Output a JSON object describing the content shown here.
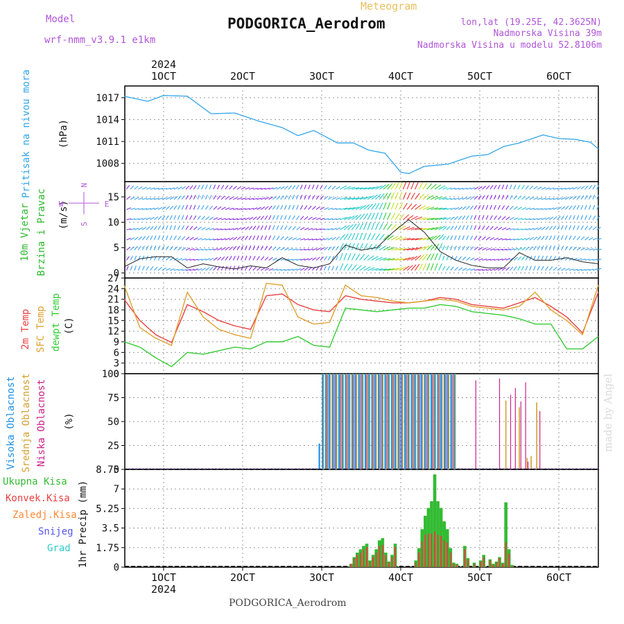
{
  "header": {
    "model_label": "Model",
    "model_value": "wrf-nmm_v3.9.1 e1km",
    "meteogram_label": "Meteogram",
    "station": "PODGORICA_Aerodrom",
    "lonlat": "lon,lat (19.25E, 42.3625N)",
    "elevation": "Nadmorska Visina 39m",
    "elevation_model": "Nadmorska Visina u modelu 52.8106m"
  },
  "footer": {
    "station": "PODGORICA_Aerodrom",
    "made_by": "made by Angel"
  },
  "colors": {
    "pressure": "#33a6e8",
    "wind_title": "#2db82d",
    "temp2m": "#e84040",
    "sfc": "#e0a030",
    "dewpt": "#33cc33",
    "high_cloud": "#1e90e8",
    "mid_cloud": "#d4a030",
    "low_cloud": "#cc2288",
    "precip_total": "#33bb33",
    "precip_conv": "#e84040",
    "precip_frozen": "#ff8833",
    "snow": "#5555ee",
    "hail": "#33cccc",
    "label_purple": "#b055d8"
  },
  "time_axis": {
    "ticks": [
      "1OCT",
      "2OCT",
      "3OCT",
      "4OCT",
      "5OCT",
      "6OCT"
    ],
    "year": "2024"
  },
  "chart_data": [
    {
      "type": "line",
      "name": "pressure",
      "ylabel_lines": [
        "Pritisak na nivou mora",
        "(hPa)"
      ],
      "ylim": [
        1005.5,
        1018.6
      ],
      "yticks": [
        "1017",
        "1014",
        "1011",
        "1008"
      ],
      "ytick_values": [
        1017,
        1014,
        1011,
        1008
      ],
      "grid": true,
      "x_days": [
        0.5,
        0.8,
        1.0,
        1.3,
        1.6,
        1.9,
        2.2,
        2.5,
        2.7,
        2.9,
        3.2,
        3.4,
        3.6,
        3.8,
        4.0,
        4.1,
        4.3,
        4.6,
        4.9,
        5.1,
        5.3,
        5.5,
        5.8,
        6.0,
        6.2,
        6.4,
        6.5
      ],
      "values": [
        1017.2,
        1016.5,
        1017.3,
        1017.2,
        1014.8,
        1014.9,
        1013.8,
        1012.9,
        1011.8,
        1012.5,
        1010.8,
        1010.8,
        1009.8,
        1009.4,
        1006.8,
        1006.6,
        1007.6,
        1007.9,
        1009.0,
        1009.2,
        1010.3,
        1010.8,
        1011.9,
        1011.4,
        1011.3,
        1010.9,
        1010.0
      ]
    },
    {
      "type": "line",
      "name": "wind",
      "ylabel_lines": [
        "10m Vjetar",
        "Brzina i Pravac",
        "(m/s)"
      ],
      "compass": [
        "N",
        "E",
        "S",
        "W"
      ],
      "ylim": [
        -1,
        18
      ],
      "yticks": [
        "15",
        "10",
        "5",
        "0"
      ],
      "ytick_values": [
        15,
        10,
        5,
        0
      ],
      "grid": true,
      "x_days": [
        0.5,
        0.7,
        0.9,
        1.1,
        1.3,
        1.5,
        1.7,
        1.9,
        2.1,
        2.3,
        2.5,
        2.7,
        2.9,
        3.1,
        3.3,
        3.5,
        3.7,
        3.9,
        4.1,
        4.3,
        4.5,
        4.7,
        4.9,
        5.1,
        5.3,
        5.5,
        5.7,
        5.9,
        6.1,
        6.3,
        6.5
      ],
      "values": [
        1.2,
        2.8,
        3.2,
        3.2,
        1.0,
        1.8,
        1.2,
        0.8,
        1.4,
        1.0,
        3.0,
        1.5,
        1.0,
        1.8,
        5.5,
        4.5,
        5.0,
        8.0,
        10.5,
        8.0,
        4.2,
        2.5,
        1.5,
        1.0,
        1.0,
        4.0,
        2.5,
        2.5,
        3.0,
        2.2,
        1.8
      ]
    },
    {
      "type": "line",
      "name": "temperature",
      "ylabel_lines": [
        "2m Temp",
        "SFC Temp",
        "dewpt Temp",
        "(C)"
      ],
      "ylim": [
        0,
        27
      ],
      "yticks": [
        "27",
        "24",
        "21",
        "18",
        "15",
        "12",
        "9",
        "6",
        "3",
        "0"
      ],
      "ytick_values": [
        27,
        24,
        21,
        18,
        15,
        12,
        9,
        6,
        3,
        0
      ],
      "grid": true,
      "x_days": [
        0.5,
        0.7,
        0.9,
        1.1,
        1.3,
        1.5,
        1.7,
        1.9,
        2.1,
        2.3,
        2.5,
        2.7,
        2.9,
        3.1,
        3.3,
        3.5,
        3.7,
        3.9,
        4.1,
        4.3,
        4.5,
        4.7,
        4.9,
        5.1,
        5.3,
        5.5,
        5.7,
        5.9,
        6.1,
        6.3,
        6.5
      ],
      "series": [
        {
          "key": "t2m",
          "values": [
            21.0,
            15.0,
            11.0,
            8.8,
            19.5,
            17.5,
            15.0,
            13.5,
            12.5,
            22.0,
            22.5,
            19.5,
            18.0,
            17.5,
            22.0,
            21.0,
            20.5,
            20.0,
            20.0,
            20.5,
            21.5,
            21.0,
            19.5,
            19.0,
            18.5,
            20.0,
            21.5,
            19.0,
            16.0,
            11.5,
            23.0
          ]
        },
        {
          "key": "sfc",
          "values": [
            25.0,
            13.0,
            10.0,
            8.0,
            23.0,
            16.0,
            12.5,
            11.0,
            10.0,
            25.5,
            25.0,
            16.0,
            14.0,
            14.5,
            25.0,
            22.0,
            21.5,
            20.5,
            20.0,
            20.5,
            21.0,
            20.5,
            19.0,
            18.5,
            18.0,
            19.0,
            23.0,
            18.0,
            15.0,
            11.0,
            25.0
          ]
        },
        {
          "key": "dewpt",
          "values": [
            9.0,
            7.5,
            4.5,
            2.0,
            6.0,
            5.5,
            6.5,
            7.5,
            7.0,
            9.0,
            9.0,
            10.5,
            8.0,
            7.5,
            18.5,
            18.0,
            17.5,
            18.0,
            18.5,
            18.5,
            19.5,
            19.0,
            17.5,
            17.0,
            16.5,
            15.5,
            14.0,
            14.0,
            7.0,
            7.0,
            10.5
          ]
        }
      ]
    },
    {
      "type": "bar",
      "name": "cloud",
      "ylabel_lines": [
        "Visoka Oblacnost",
        "Srednja Oblacnost",
        "Niska Oblacnost",
        "(%)"
      ],
      "ylim": [
        0,
        100
      ],
      "yticks": [
        "100",
        "75",
        "50",
        "25",
        "0"
      ],
      "ytick_values": [
        100,
        75,
        50,
        25,
        0
      ],
      "grid": true,
      "high_span_days": [
        2.97,
        4.68
      ],
      "high_first": 27,
      "mid_extra": [
        {
          "x": 5.33,
          "v": 72
        },
        {
          "x": 5.5,
          "v": 65
        },
        {
          "x": 5.72,
          "v": 70
        },
        {
          "x": 5.6,
          "v": 12
        },
        {
          "x": 5.65,
          "v": 14
        }
      ],
      "low_extra": [
        {
          "x": 4.95,
          "v": 93
        },
        {
          "x": 5.25,
          "v": 95
        },
        {
          "x": 5.39,
          "v": 78
        },
        {
          "x": 5.45,
          "v": 85
        },
        {
          "x": 5.52,
          "v": 71
        },
        {
          "x": 5.58,
          "v": 91
        },
        {
          "x": 5.76,
          "v": 61
        },
        {
          "x": 5.61,
          "v": 8
        }
      ]
    },
    {
      "type": "bar",
      "name": "precip",
      "ylabel_lines": [
        "1hr Precip (mm)"
      ],
      "legend": [
        "Ukupna Kisa",
        "Konvek.Kisa",
        "Zaledj.Kisa",
        "Snijeg",
        "Grad"
      ],
      "ylim": [
        0,
        8.75
      ],
      "yticks": [
        "8.75",
        "7",
        "5.25",
        "3.5",
        "1.75",
        "0"
      ],
      "ytick_values": [
        8.75,
        7,
        5.25,
        3.5,
        1.75,
        0
      ],
      "grid": true,
      "x_days": [
        3.37,
        3.41,
        3.45,
        3.49,
        3.53,
        3.57,
        3.61,
        3.65,
        3.69,
        3.73,
        3.77,
        3.81,
        3.85,
        3.89,
        3.93,
        4.19,
        4.23,
        4.27,
        4.31,
        4.35,
        4.39,
        4.43,
        4.47,
        4.51,
        4.55,
        4.59,
        4.63,
        4.67,
        4.71,
        4.81,
        4.85,
        4.93,
        5.01,
        5.05,
        5.13,
        5.17,
        5.21,
        5.25,
        5.29,
        5.33,
        5.37,
        5.41
      ],
      "values": [
        0.3,
        0.9,
        1.3,
        1.6,
        1.9,
        2.1,
        0.6,
        1.1,
        1.6,
        2.4,
        2.6,
        1.3,
        0.5,
        1.1,
        2.1,
        0.6,
        1.7,
        3.4,
        4.6,
        5.3,
        5.9,
        8.3,
        5.9,
        5.3,
        4.1,
        3.4,
        1.7,
        0.4,
        0.3,
        1.9,
        0.8,
        0.4,
        0.6,
        1.1,
        0.7,
        0.3,
        0.5,
        0.9,
        0.4,
        5.8,
        1.6,
        0.2
      ],
      "conv": [
        0.3,
        0.8,
        1.1,
        1.3,
        1.6,
        1.8,
        0.5,
        0.9,
        1.3,
        1.9,
        2.0,
        1.1,
        0.4,
        0.9,
        1.8,
        0.4,
        1.3,
        2.3,
        2.9,
        3.0,
        3.0,
        3.2,
        2.9,
        2.8,
        2.4,
        2.2,
        1.3,
        0.3,
        0.2,
        1.6,
        0.7,
        0.3,
        0.5,
        0.9,
        0.6,
        0.2,
        0.4,
        0.8,
        0.3,
        2.2,
        1.2,
        0.1
      ]
    }
  ]
}
